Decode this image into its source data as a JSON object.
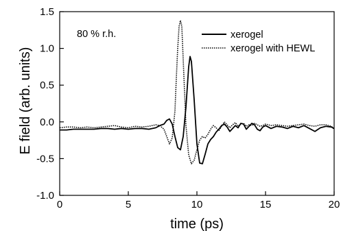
{
  "chart_data": {
    "type": "line",
    "title": "",
    "xlabel": "time (ps)",
    "ylabel": "E field (arb. units)",
    "xlim": [
      0,
      20
    ],
    "ylim": [
      -1.0,
      1.5
    ],
    "x_ticks": [
      0,
      5,
      10,
      15,
      20
    ],
    "x_tick_labels": [
      "0",
      "5",
      "10",
      "15",
      "20"
    ],
    "y_ticks": [
      -1.0,
      -0.5,
      0.0,
      0.5,
      1.0,
      1.5
    ],
    "y_tick_labels": [
      "-1.0",
      "-0.5",
      "0.0",
      "0.5",
      "1.0",
      "1.5"
    ],
    "grid": false,
    "legend_position": "top-right",
    "annotation": "80 % r.h.",
    "series": [
      {
        "name": "xerogel",
        "color": "#000000",
        "style": "solid",
        "x": [
          0,
          0.5,
          1,
          1.5,
          2,
          2.5,
          3,
          3.5,
          4,
          4.5,
          5,
          5.5,
          6,
          6.5,
          7,
          7.3,
          7.6,
          7.8,
          8.0,
          8.2,
          8.4,
          8.6,
          8.8,
          9.0,
          9.2,
          9.4,
          9.5,
          9.6,
          9.8,
          10.0,
          10.2,
          10.4,
          10.6,
          10.8,
          11.0,
          11.2,
          11.4,
          11.6,
          11.8,
          12.0,
          12.2,
          12.4,
          12.6,
          12.8,
          13.0,
          13.2,
          13.4,
          13.6,
          13.8,
          14.0,
          14.2,
          14.4,
          14.6,
          14.8,
          15.0,
          15.4,
          15.8,
          16.2,
          16.6,
          17.0,
          17.4,
          17.8,
          18.2,
          18.6,
          19.0,
          19.4,
          19.8,
          20
        ],
        "y": [
          -0.11,
          -0.11,
          -0.1,
          -0.1,
          -0.1,
          -0.1,
          -0.09,
          -0.09,
          -0.1,
          -0.09,
          -0.1,
          -0.09,
          -0.09,
          -0.1,
          -0.08,
          -0.05,
          -0.03,
          0.02,
          0.04,
          -0.03,
          -0.2,
          -0.35,
          -0.38,
          -0.2,
          0.2,
          0.75,
          0.89,
          0.82,
          0.3,
          -0.3,
          -0.56,
          -0.57,
          -0.44,
          -0.3,
          -0.24,
          -0.2,
          -0.14,
          -0.1,
          -0.05,
          -0.03,
          -0.07,
          -0.13,
          -0.09,
          -0.05,
          -0.08,
          -0.02,
          -0.03,
          -0.1,
          -0.06,
          -0.02,
          -0.04,
          -0.1,
          -0.12,
          -0.07,
          -0.05,
          -0.09,
          -0.06,
          -0.07,
          -0.09,
          -0.06,
          -0.08,
          -0.05,
          -0.09,
          -0.13,
          -0.08,
          -0.06,
          -0.07,
          -0.09
        ]
      },
      {
        "name": "xerogel with HEWL",
        "color": "#000000",
        "style": "dotted",
        "x": [
          0,
          0.5,
          1,
          1.5,
          2,
          2.5,
          3,
          3.5,
          4,
          4.5,
          5,
          5.5,
          6,
          6.5,
          7,
          7.3,
          7.6,
          7.8,
          8.0,
          8.2,
          8.4,
          8.5,
          8.6,
          8.7,
          8.8,
          8.9,
          9.0,
          9.2,
          9.4,
          9.6,
          9.8,
          10.0,
          10.2,
          10.4,
          10.6,
          10.8,
          11.0,
          11.2,
          11.4,
          11.6,
          11.8,
          12.0,
          12.2,
          12.4,
          12.6,
          12.8,
          13.0,
          13.2,
          13.4,
          13.6,
          13.8,
          14.0,
          14.2,
          14.4,
          14.6,
          14.8,
          15.0,
          15.4,
          15.8,
          16.2,
          16.6,
          17.0,
          17.4,
          17.8,
          18.2,
          18.6,
          19.0,
          19.4,
          19.8,
          20
        ],
        "y": [
          -0.08,
          -0.07,
          -0.07,
          -0.08,
          -0.07,
          -0.08,
          -0.07,
          -0.06,
          -0.05,
          -0.07,
          -0.08,
          -0.06,
          -0.07,
          -0.06,
          -0.04,
          -0.05,
          -0.1,
          -0.2,
          -0.3,
          -0.22,
          0.15,
          0.6,
          1.0,
          1.3,
          1.38,
          1.3,
          0.85,
          -0.05,
          -0.45,
          -0.57,
          -0.52,
          -0.38,
          -0.25,
          -0.2,
          -0.22,
          -0.17,
          -0.1,
          -0.05,
          -0.08,
          -0.12,
          -0.06,
          0.0,
          -0.04,
          -0.08,
          -0.04,
          -0.01,
          -0.06,
          -0.03,
          -0.02,
          -0.06,
          -0.04,
          -0.05,
          -0.02,
          -0.04,
          -0.06,
          -0.05,
          -0.03,
          -0.05,
          -0.04,
          -0.05,
          -0.06,
          -0.05,
          -0.04,
          -0.03,
          -0.05,
          -0.06,
          -0.04,
          -0.04,
          -0.06,
          -0.1
        ]
      }
    ]
  }
}
